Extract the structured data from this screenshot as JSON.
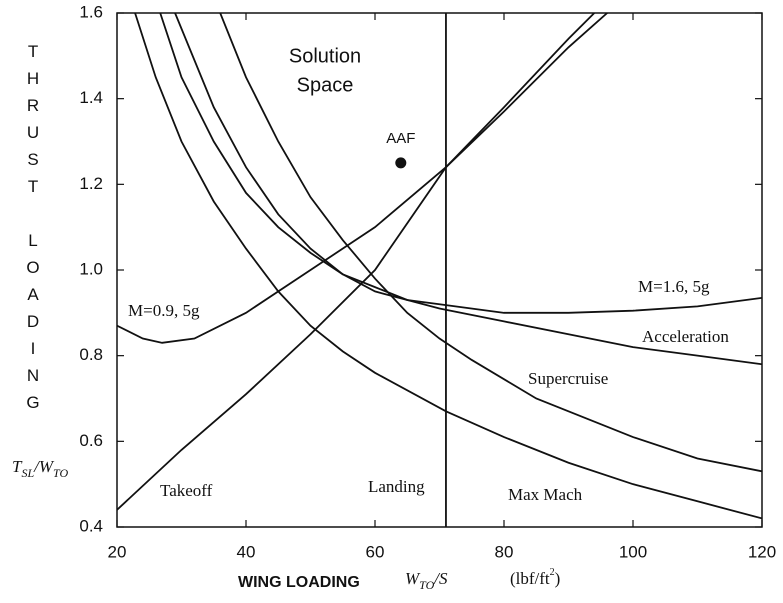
{
  "chart_data": {
    "type": "line",
    "xlabel": "WING LOADING",
    "xlabel_symbol": [
      "W",
      "TO",
      "/S"
    ],
    "xlabel_units": [
      "(lbf/ft",
      "2",
      ")"
    ],
    "ylabel": "THRUST LOADING",
    "ylabel_symbol": [
      "T",
      "SL",
      "/W",
      "TO"
    ],
    "xlim": [
      20,
      120
    ],
    "ylim": [
      0.4,
      1.6
    ],
    "xticks": [
      20,
      40,
      60,
      80,
      100,
      120
    ],
    "yticks": [
      0.4,
      0.6,
      0.8,
      {
        "value": 1.0,
        "label": "1.0"
      },
      1.2,
      1.4,
      1.6
    ],
    "grid": false,
    "color": "#111111",
    "annotations": [
      {
        "text": [
          "Solution",
          "Space"
        ]
      },
      {
        "text": "AAF",
        "x": 64,
        "y": 1.25
      }
    ],
    "series": [
      {
        "name": "Takeoff",
        "x": [
          20,
          30,
          40,
          50,
          60,
          71,
          80,
          90,
          94
        ],
        "values": [
          0.44,
          0.58,
          0.71,
          0.85,
          1.0,
          1.24,
          1.38,
          1.54,
          1.6
        ]
      },
      {
        "name": "Landing",
        "x": [
          71,
          71
        ],
        "values": [
          0.4,
          1.6
        ]
      },
      {
        "name": "M=0.9, 5g",
        "x": [
          20,
          24,
          27,
          32,
          40,
          50,
          60,
          71,
          80,
          90,
          96
        ],
        "values": [
          0.87,
          0.84,
          0.83,
          0.84,
          0.9,
          1.0,
          1.1,
          1.24,
          1.37,
          1.52,
          1.6
        ]
      },
      {
        "name": "M=1.6, 5g",
        "x": [
          26.7,
          30,
          35,
          40,
          45,
          50,
          55,
          60,
          65,
          70,
          80,
          90,
          100,
          110,
          120
        ],
        "values": [
          1.6,
          1.45,
          1.3,
          1.18,
          1.1,
          1.04,
          0.99,
          0.96,
          0.93,
          0.92,
          0.9,
          0.9,
          0.905,
          0.915,
          0.935
        ]
      },
      {
        "name": "Acceleration",
        "x": [
          29,
          35,
          40,
          45,
          50,
          55,
          60,
          70,
          80,
          90,
          100,
          110,
          120
        ],
        "values": [
          1.6,
          1.38,
          1.24,
          1.13,
          1.05,
          0.99,
          0.95,
          0.91,
          0.88,
          0.85,
          0.82,
          0.8,
          0.78
        ]
      },
      {
        "name": "Supercruise",
        "x": [
          36,
          40,
          45,
          50,
          55,
          60,
          65,
          70,
          75,
          85,
          100,
          110,
          120
        ],
        "values": [
          1.6,
          1.45,
          1.3,
          1.17,
          1.07,
          0.98,
          0.9,
          0.84,
          0.79,
          0.7,
          0.61,
          0.56,
          0.53
        ]
      },
      {
        "name": "Max Mach",
        "x": [
          22.8,
          26,
          30,
          35,
          40,
          45,
          50,
          55,
          60,
          71,
          80,
          90,
          100,
          110,
          120
        ],
        "values": [
          1.6,
          1.45,
          1.3,
          1.16,
          1.05,
          0.95,
          0.87,
          0.81,
          0.76,
          0.67,
          0.61,
          0.55,
          0.5,
          0.46,
          0.42
        ]
      }
    ]
  }
}
